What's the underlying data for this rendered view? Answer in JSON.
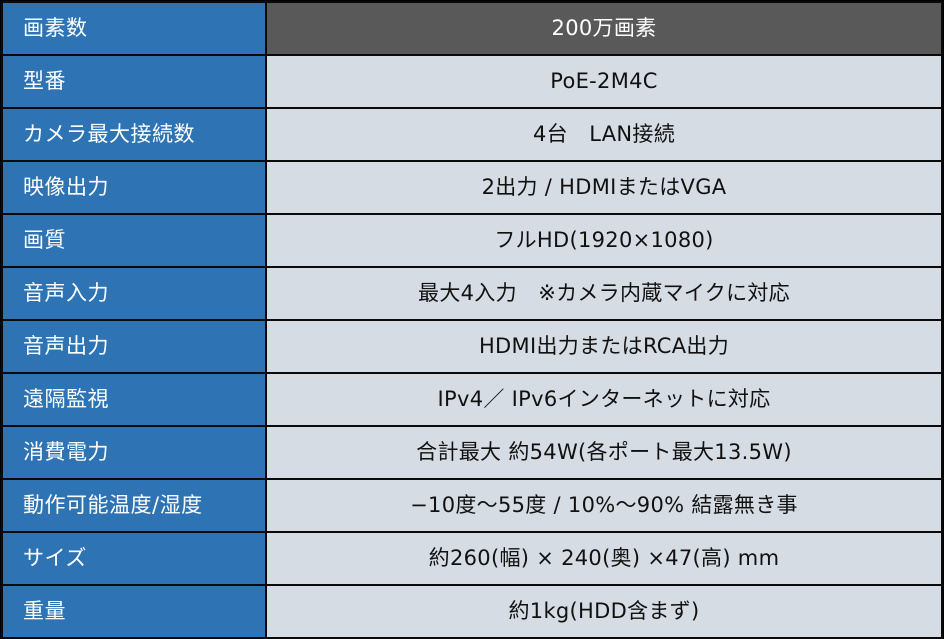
{
  "spec_table": {
    "colors": {
      "label_bg": "#2E74B5",
      "label_text": "#FFFFFF",
      "header_value_bg": "#595959",
      "header_value_text": "#FFFFFF",
      "value_bg": "#D6DCE4",
      "value_text": "#111111",
      "border": "#0A0A0A"
    },
    "rows": [
      {
        "label": "画素数",
        "value": "200万画素"
      },
      {
        "label": "型番",
        "value": "PoE-2M4C"
      },
      {
        "label": "カメラ最大接続数",
        "value": "4台　LAN接続"
      },
      {
        "label": "映像出力",
        "value": "2出力 / HDMIまたはVGA"
      },
      {
        "label": "画質",
        "value": "フルHD(1920×1080)"
      },
      {
        "label": "音声入力",
        "value": "最大4入力　※カメラ内蔵マイクに対応"
      },
      {
        "label": "音声出力",
        "value": "HDMI出力またはRCA出力"
      },
      {
        "label": "遠隔監視",
        "value": "IPv4／ IPv6インターネットに対応"
      },
      {
        "label": "消費電力",
        "value": "合計最大 約54W(各ポート最大13.5W)"
      },
      {
        "label": "動作可能温度/湿度",
        "value": "−10度～55度 / 10%～90% 結露無き事"
      },
      {
        "label": "サイズ",
        "value": "約260(幅) × 240(奥) ×47(高) mm"
      },
      {
        "label": "重量",
        "value": "約1kg(HDD含まず)"
      }
    ]
  }
}
